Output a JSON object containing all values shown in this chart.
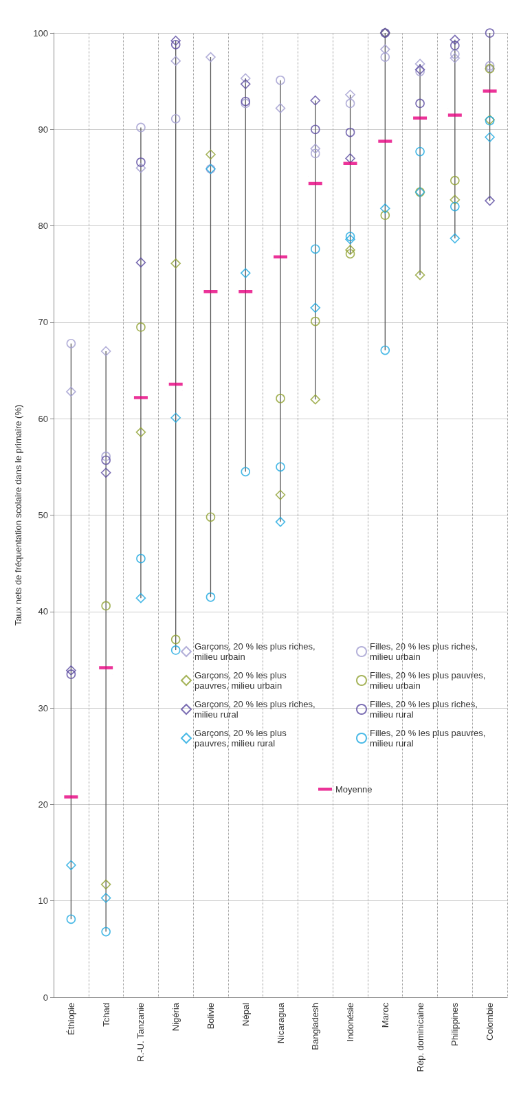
{
  "chart_data": {
    "type": "scatter",
    "ylabel": "Taux nets de fréquentation scolaire dans le primaire (%)",
    "categories": [
      "Éthiopie",
      "Tchad",
      "R.-U. Tanzanie",
      "Nigéria",
      "Bolivie",
      "Népal",
      "Nicaragua",
      "Bangladesh",
      "Indonésie",
      "Maroc",
      "Rép. dominicaine",
      "Philippines",
      "Colombie"
    ],
    "ylim": [
      0,
      100
    ],
    "yticks": [
      0,
      10,
      20,
      30,
      40,
      50,
      60,
      70,
      80,
      90,
      100
    ],
    "grid": true,
    "legend": "bottom right",
    "series": [
      {
        "name": "Garçons, 20 % les plus riches, milieu urbain",
        "color": "#a09cd0",
        "marker": "diamond",
        "values": [
          62.8,
          67,
          86,
          97.1,
          97.5,
          95.3,
          92.2,
          88,
          93.6,
          98.3,
          96.8,
          97.4,
          96.3
        ]
      },
      {
        "name": "Filles, 20 % les plus riches, milieu urbain",
        "color": "#a09cd0",
        "marker": "circle",
        "values": [
          67.8,
          56.1,
          90.2,
          91.1,
          85.9,
          92.7,
          95.1,
          87.5,
          92.7,
          97.5,
          96,
          97.8,
          96.6
        ]
      },
      {
        "name": "Garçons, 20 % les plus pauvres, milieu urbain",
        "color": "#8fa030",
        "marker": "diamond",
        "values": [
          null,
          11.7,
          58.6,
          76.1,
          87.4,
          null,
          52.1,
          62,
          77.5,
          100,
          74.9,
          82.7,
          91
        ]
      },
      {
        "name": "Filles, 20 % les plus pauvres, milieu urbain",
        "color": "#8fa030",
        "marker": "circle",
        "values": [
          null,
          40.6,
          69.5,
          37.1,
          49.8,
          null,
          62.1,
          70.1,
          77.1,
          81.1,
          83.5,
          84.7,
          96.3
        ]
      },
      {
        "name": "Garçons, 20 % les plus riches, milieu rural",
        "color": "#5a4aa0",
        "marker": "diamond",
        "values": [
          33.9,
          54.4,
          76.2,
          99.2,
          null,
          94.7,
          null,
          93,
          87,
          100,
          96.2,
          99.3,
          82.6
        ]
      },
      {
        "name": "Filles, 20 % les plus riches, milieu rural",
        "color": "#5a4aa0",
        "marker": "circle",
        "values": [
          33.5,
          55.7,
          86.6,
          98.8,
          null,
          92.9,
          null,
          90,
          89.7,
          100,
          92.7,
          98.7,
          100
        ]
      },
      {
        "name": "Garçons, 20 % les plus pauvres, milieu rural",
        "color": "#1ca8e0",
        "marker": "diamond",
        "values": [
          13.7,
          10.3,
          41.4,
          60.1,
          85.9,
          75.1,
          49.3,
          71.5,
          78.6,
          81.8,
          83.5,
          78.7,
          89.2
        ]
      },
      {
        "name": "Filles, 20 % les plus pauvres, milieu rural",
        "color": "#1ca8e0",
        "marker": "circle",
        "values": [
          8.1,
          6.8,
          45.5,
          36,
          41.5,
          54.5,
          55,
          77.6,
          78.9,
          67.1,
          87.7,
          82,
          90.9
        ]
      },
      {
        "name": "Moyenne",
        "color": "#e6007e",
        "values": [
          20.8,
          34.2,
          62.2,
          63.6,
          73.2,
          73.2,
          76.8,
          84.4,
          86.5,
          88.8,
          91.2,
          91.5,
          94
        ]
      }
    ]
  }
}
